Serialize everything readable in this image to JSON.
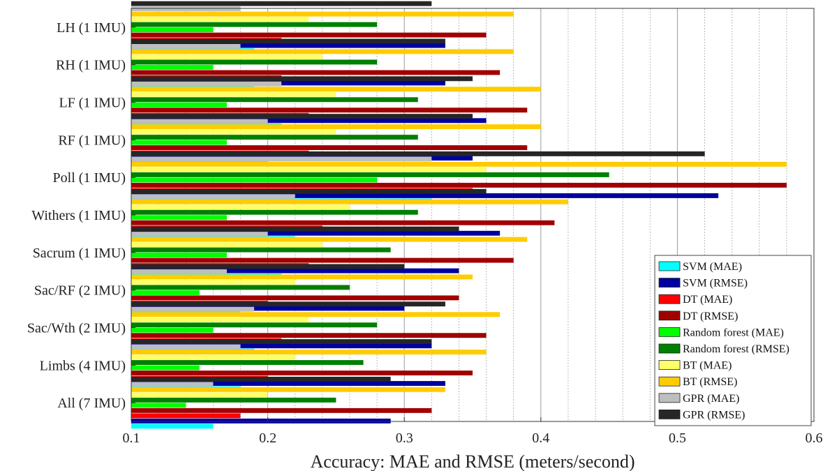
{
  "chart_data": {
    "type": "bar",
    "orientation": "horizontal",
    "xlabel": "Accuracy: MAE and RMSE (meters/second)",
    "ylabel": "",
    "title": "",
    "xlim": [
      0.1,
      0.6
    ],
    "xticks": [
      0.1,
      0.2,
      0.3,
      0.4,
      0.5,
      0.6
    ],
    "xtick_labels": [
      "0.1",
      "0.2",
      "0.3",
      "0.4",
      "0.5",
      "0.6"
    ],
    "grid": "vertical dotted minor, solid major",
    "legend_position": "bottom-right",
    "categories": [
      "LH (1 IMU)",
      "RH (1 IMU)",
      "LF (1 IMU)",
      "RF (1 IMU)",
      "Poll (1 IMU)",
      "Withers (1 IMU)",
      "Sacrum (1 IMU)",
      "Sac/RF (2 IMU)",
      "Sac/Wth (2 IMU)",
      "Limbs (4 IMU)",
      "All (7 IMU)"
    ],
    "series": [
      {
        "name": "SVM (MAE)",
        "color": "#00ffff",
        "values": [
          0.19,
          0.19,
          0.21,
          0.2,
          0.32,
          0.22,
          0.21,
          0.18,
          0.19,
          0.18,
          0.16
        ]
      },
      {
        "name": "SVM (RMSE)",
        "color": "#0000a0",
        "values": [
          0.33,
          0.33,
          0.36,
          0.35,
          0.53,
          0.37,
          0.34,
          0.3,
          0.32,
          0.33,
          0.29
        ]
      },
      {
        "name": "DT (MAE)",
        "color": "#ff0000",
        "values": [
          0.21,
          0.21,
          0.23,
          0.23,
          0.35,
          0.24,
          0.23,
          0.2,
          0.21,
          0.2,
          0.18
        ]
      },
      {
        "name": "DT (RMSE)",
        "color": "#a00000",
        "values": [
          0.36,
          0.37,
          0.39,
          0.39,
          0.58,
          0.41,
          0.38,
          0.34,
          0.36,
          0.35,
          0.32
        ]
      },
      {
        "name": "Random forest (MAE)",
        "color": "#00ff00",
        "values": [
          0.16,
          0.16,
          0.17,
          0.17,
          0.28,
          0.17,
          0.17,
          0.15,
          0.16,
          0.15,
          0.14
        ]
      },
      {
        "name": "Random forest (RMSE)",
        "color": "#008000",
        "values": [
          0.28,
          0.28,
          0.31,
          0.31,
          0.45,
          0.31,
          0.29,
          0.26,
          0.28,
          0.27,
          0.25
        ]
      },
      {
        "name": "BT (MAE)",
        "color": "#ffff66",
        "values": [
          0.23,
          0.24,
          0.25,
          0.25,
          0.36,
          0.26,
          0.24,
          0.22,
          0.23,
          0.22,
          0.2
        ]
      },
      {
        "name": "BT (RMSE)",
        "color": "#ffcc00",
        "values": [
          0.38,
          0.38,
          0.4,
          0.4,
          0.58,
          0.42,
          0.39,
          0.35,
          0.37,
          0.36,
          0.33
        ]
      },
      {
        "name": "GPR (MAE)",
        "color": "#bebebe",
        "values": [
          0.18,
          0.18,
          0.21,
          0.2,
          0.32,
          0.22,
          0.2,
          0.17,
          0.19,
          0.18,
          0.16
        ]
      },
      {
        "name": "GPR (RMSE)",
        "color": "#262626",
        "values": [
          0.32,
          0.33,
          0.35,
          0.35,
          0.52,
          0.36,
          0.34,
          0.3,
          0.33,
          0.32,
          0.29
        ]
      }
    ]
  }
}
